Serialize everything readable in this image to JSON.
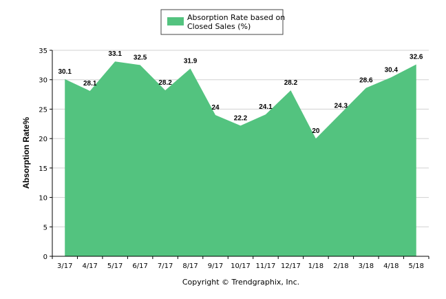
{
  "colors": {
    "area": "#53c37f",
    "grid": "#d0d0d0",
    "axis": "#000000"
  },
  "footer_text": "Copyright © Trendgraphix, Inc.",
  "chart_data": {
    "type": "area",
    "title": "",
    "xlabel": "",
    "ylabel": "Absorption Rate%",
    "ylim": [
      0,
      35
    ],
    "yticks": [
      0,
      5,
      10,
      15,
      20,
      25,
      30,
      35
    ],
    "grid": true,
    "legend_position": "top-center",
    "categories": [
      "3/17",
      "4/17",
      "5/17",
      "6/17",
      "7/17",
      "8/17",
      "9/17",
      "10/17",
      "11/17",
      "12/17",
      "1/18",
      "2/18",
      "3/18",
      "4/18",
      "5/18"
    ],
    "series": [
      {
        "name": "Absorption Rate based on Closed Sales (%)",
        "legend_lines": [
          "Absorption Rate based on",
          "Closed Sales (%)"
        ],
        "values": [
          30.1,
          28.1,
          33.1,
          32.5,
          28.2,
          31.9,
          24,
          22.2,
          24.1,
          28.2,
          20,
          24.3,
          28.6,
          30.4,
          32.6
        ],
        "labels": [
          "30.1",
          "28.1",
          "33.1",
          "32.5",
          "28.2",
          "31.9",
          "24",
          "22.2",
          "24.1",
          "28.2",
          "20",
          "24.3",
          "28.6",
          "30.4",
          "32.6"
        ]
      }
    ]
  }
}
